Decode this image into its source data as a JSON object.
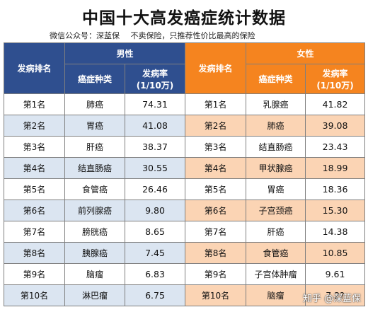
{
  "title": "中国十大高发癌症统计数据",
  "subtitle": {
    "source": "微信公众号：深蓝保",
    "note": "不卖保险，只推荐性价比最高的保险"
  },
  "headers": {
    "rank": "发病排名",
    "male": "男性",
    "female": "女性",
    "cancer_type": "癌症种类",
    "rate": "发病率",
    "rate_unit": "(1/10万)"
  },
  "rows": [
    {
      "rank": "第1名",
      "male_type": "肺癌",
      "male_rate": "74.31",
      "female_rank": "第1名",
      "female_type": "乳腺癌",
      "female_rate": "41.82"
    },
    {
      "rank": "第2名",
      "male_type": "胃癌",
      "male_rate": "41.08",
      "female_rank": "第2名",
      "female_type": "肺癌",
      "female_rate": "39.08"
    },
    {
      "rank": "第3名",
      "male_type": "肝癌",
      "male_rate": "38.37",
      "female_rank": "第3名",
      "female_type": "结直肠癌",
      "female_rate": "23.43"
    },
    {
      "rank": "第4名",
      "male_type": "结直肠癌",
      "male_rate": "30.55",
      "female_rank": "第4名",
      "female_type": "甲状腺癌",
      "female_rate": "18.99"
    },
    {
      "rank": "第5名",
      "male_type": "食管癌",
      "male_rate": "26.46",
      "female_rank": "第5名",
      "female_type": "胃癌",
      "female_rate": "18.36"
    },
    {
      "rank": "第6名",
      "male_type": "前列腺癌",
      "male_rate": "9.80",
      "female_rank": "第6名",
      "female_type": "子宫颈癌",
      "female_rate": "15.30"
    },
    {
      "rank": "第7名",
      "male_type": "膀胱癌",
      "male_rate": "8.65",
      "female_rank": "第7名",
      "female_type": "肝癌",
      "female_rate": "14.38"
    },
    {
      "rank": "第8名",
      "male_type": "胰腺癌",
      "male_rate": "7.45",
      "female_rank": "第8名",
      "female_type": "食管癌",
      "female_rate": "10.85"
    },
    {
      "rank": "第9名",
      "male_type": "脑瘤",
      "male_rate": "6.83",
      "female_rank": "第9名",
      "female_type": "子宫体肿瘤",
      "female_rate": "9.61"
    },
    {
      "rank": "第10名",
      "male_type": "淋巴瘤",
      "male_rate": "6.75",
      "female_rank": "第10名",
      "female_type": "脑瘤",
      "female_rate": "7.2?"
    }
  ],
  "watermark": "知乎 @深蓝保",
  "colors": {
    "male_header": "#2f4f8f",
    "female_header": "#f5841f",
    "male_stripe": "#dbe5f1",
    "female_stripe": "#fbd4b4"
  }
}
